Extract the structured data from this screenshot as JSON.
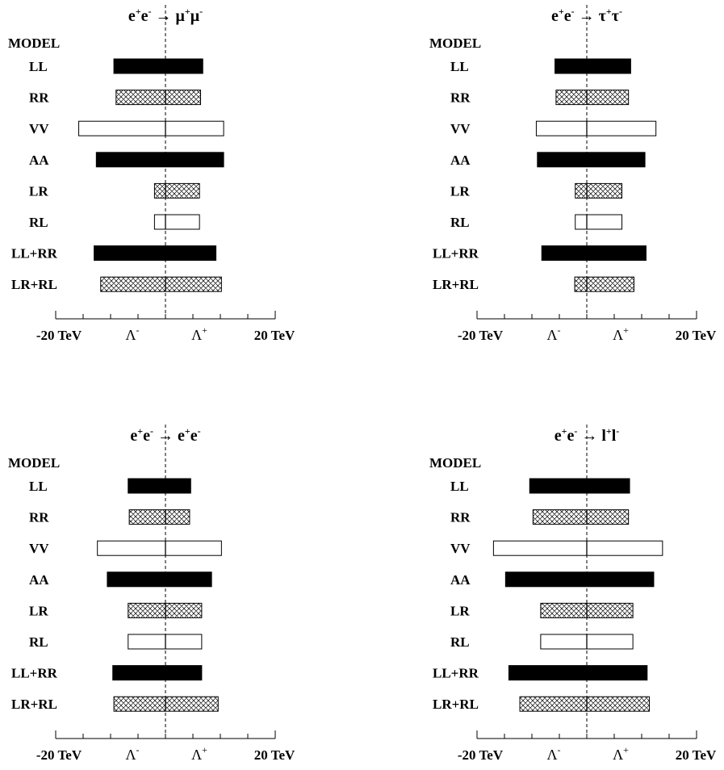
{
  "chart_data": [
    {
      "type": "bar",
      "title_parts": {
        "a": "e",
        "a_sup": "+",
        "b": "e",
        "b_sup": "-",
        "arrow": "→",
        "c": "μ",
        "c_sup": "+",
        "d": "μ",
        "d_sup": "-"
      },
      "model_header": "MODEL",
      "categories": [
        "LL",
        "RR",
        "VV",
        "AA",
        "LR",
        "RL",
        "LL+RR",
        "LR+RL"
      ],
      "x_unit": "TeV",
      "xlim": [
        -20,
        20
      ],
      "tick_labels": {
        "left": "-20 TeV",
        "lambda_minus": "Λ",
        "lambda_minus_sup": "-",
        "lambda_plus": "Λ",
        "lambda_plus_sup": "+",
        "right": "20 TeV"
      },
      "patterns": [
        "solid",
        "hatched",
        "open",
        "solid",
        "hatched",
        "open",
        "solid",
        "hatched"
      ],
      "limits": [
        {
          "minus": -9.4,
          "plus": 6.8
        },
        {
          "minus": -9.0,
          "plus": 6.4
        },
        {
          "minus": -15.8,
          "plus": 10.6
        },
        {
          "minus": -12.6,
          "plus": 10.6
        },
        {
          "minus": -2.0,
          "plus": 6.2
        },
        {
          "minus": -2.0,
          "plus": 6.2
        },
        {
          "minus": -13.0,
          "plus": 9.2
        },
        {
          "minus": -11.8,
          "plus": 10.2
        }
      ]
    },
    {
      "type": "bar",
      "title_parts": {
        "a": "e",
        "a_sup": "+",
        "b": "e",
        "b_sup": "-",
        "arrow": "→",
        "c": "τ",
        "c_sup": "+",
        "d": "τ",
        "d_sup": "-"
      },
      "model_header": "MODEL",
      "categories": [
        "LL",
        "RR",
        "VV",
        "AA",
        "LR",
        "RL",
        "LL+RR",
        "LR+RL"
      ],
      "x_unit": "TeV",
      "xlim": [
        -20,
        20
      ],
      "tick_labels": {
        "left": "-20 TeV",
        "lambda_minus": "Λ",
        "lambda_minus_sup": "-",
        "lambda_plus": "Λ",
        "lambda_plus_sup": "+",
        "right": "20 TeV"
      },
      "patterns": [
        "solid",
        "hatched",
        "open",
        "solid",
        "hatched",
        "open",
        "solid",
        "hatched"
      ],
      "limits": [
        {
          "minus": -5.8,
          "plus": 8.0
        },
        {
          "minus": -5.6,
          "plus": 7.6
        },
        {
          "minus": -9.2,
          "plus": 12.6
        },
        {
          "minus": -9.0,
          "plus": 10.6
        },
        {
          "minus": -2.1,
          "plus": 6.4
        },
        {
          "minus": -2.1,
          "plus": 6.4
        },
        {
          "minus": -8.2,
          "plus": 10.8
        },
        {
          "minus": -2.2,
          "plus": 8.6
        }
      ]
    },
    {
      "type": "bar",
      "title_parts": {
        "a": "e",
        "a_sup": "+",
        "b": "e",
        "b_sup": "-",
        "arrow": "→",
        "c": "e",
        "c_sup": "+",
        "d": "e",
        "d_sup": "-"
      },
      "model_header": "MODEL",
      "categories": [
        "LL",
        "RR",
        "VV",
        "AA",
        "LR",
        "RL",
        "LL+RR",
        "LR+RL"
      ],
      "x_unit": "TeV",
      "xlim": [
        -20,
        20
      ],
      "tick_labels": {
        "left": "-20 TeV",
        "lambda_minus": "Λ",
        "lambda_minus_sup": "-",
        "lambda_plus": "Λ",
        "lambda_plus_sup": "+",
        "right": "20 TeV"
      },
      "patterns": [
        "solid",
        "hatched",
        "open",
        "solid",
        "hatched",
        "open",
        "solid",
        "hatched"
      ],
      "limits": [
        {
          "minus": -6.8,
          "plus": 4.6
        },
        {
          "minus": -6.6,
          "plus": 4.4
        },
        {
          "minus": -12.4,
          "plus": 10.2
        },
        {
          "minus": -10.6,
          "plus": 8.4
        },
        {
          "minus": -6.8,
          "plus": 6.6
        },
        {
          "minus": -6.8,
          "plus": 6.6
        },
        {
          "minus": -9.6,
          "plus": 6.6
        },
        {
          "minus": -9.4,
          "plus": 9.6
        }
      ]
    },
    {
      "type": "bar",
      "title_parts": {
        "a": "e",
        "a_sup": "+",
        "b": "e",
        "b_sup": "-",
        "arrow": "→",
        "c": "l",
        "c_sup": "+",
        "d": "l",
        "d_sup": "-"
      },
      "model_header": "MODEL",
      "categories": [
        "LL",
        "RR",
        "VV",
        "AA",
        "LR",
        "RL",
        "LL+RR",
        "LR+RL"
      ],
      "x_unit": "TeV",
      "xlim": [
        -20,
        20
      ],
      "tick_labels": {
        "left": "-20 TeV",
        "lambda_minus": "Λ",
        "lambda_minus_sup": "-",
        "lambda_plus": "Λ",
        "lambda_plus_sup": "+",
        "right": "20 TeV"
      },
      "patterns": [
        "solid",
        "hatched",
        "open",
        "solid",
        "hatched",
        "open",
        "solid",
        "hatched"
      ],
      "limits": [
        {
          "minus": -10.4,
          "plus": 7.8
        },
        {
          "minus": -9.8,
          "plus": 7.6
        },
        {
          "minus": -17.0,
          "plus": 13.8
        },
        {
          "minus": -14.8,
          "plus": 12.2
        },
        {
          "minus": -8.4,
          "plus": 8.4
        },
        {
          "minus": -8.4,
          "plus": 8.4
        },
        {
          "minus": -14.2,
          "plus": 11.0
        },
        {
          "minus": -12.2,
          "plus": 11.4
        }
      ]
    }
  ]
}
